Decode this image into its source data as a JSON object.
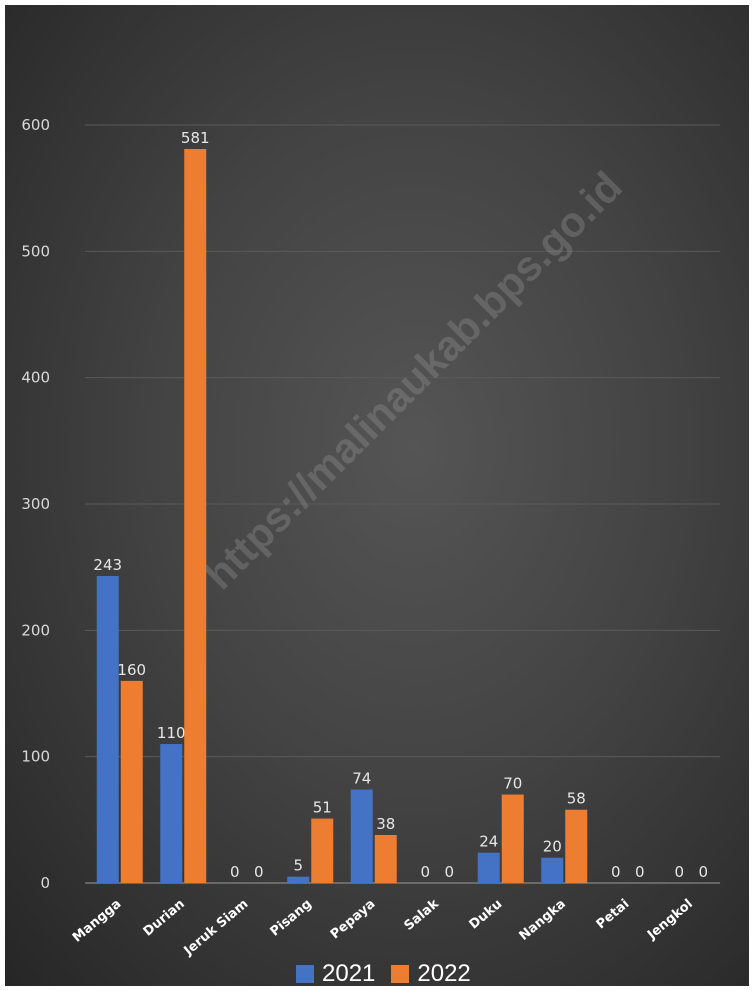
{
  "chart_data": {
    "type": "bar",
    "categories": [
      "Mangga",
      "Durian",
      "Jeruk Siam",
      "Pisang",
      "Pepaya",
      "Salak",
      "Duku",
      "Nangka",
      "Petai",
      "Jengkol"
    ],
    "series": [
      {
        "name": "2021",
        "values": [
          243,
          110,
          0,
          5,
          74,
          0,
          24,
          20,
          0,
          0
        ],
        "color": "#4472C4"
      },
      {
        "name": "2022",
        "values": [
          160,
          581,
          0,
          51,
          38,
          0,
          70,
          58,
          0,
          0
        ],
        "color": "#ED7D31"
      }
    ],
    "yticks": [
      0,
      100,
      200,
      300,
      400,
      500,
      600
    ],
    "ylim": [
      0,
      600
    ],
    "grid": true,
    "legend_position": "bottom",
    "data_labels": true,
    "watermark": "https://malinaukab.bps.go.id"
  }
}
